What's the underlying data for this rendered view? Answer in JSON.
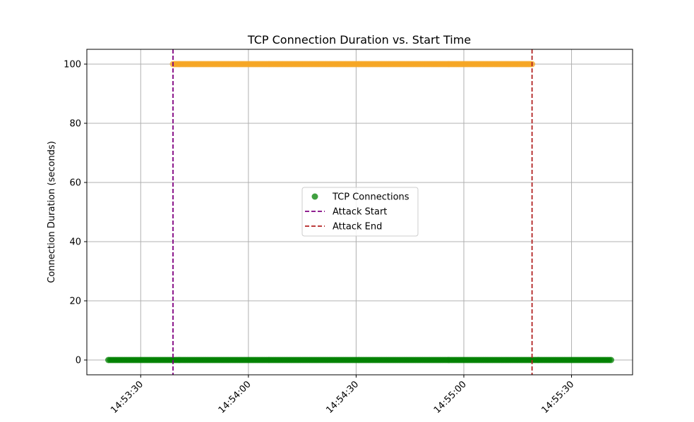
{
  "chart_data": {
    "type": "scatter",
    "title": "TCP Connection Duration vs. Start Time",
    "xlabel": "",
    "ylabel": "Connection Duration (seconds)",
    "xlim": [
      "14:53:15",
      "14:55:47"
    ],
    "ylim": [
      -5,
      105
    ],
    "x_ticks": [
      "14:53:30",
      "14:54:00",
      "14:54:30",
      "14:55:00",
      "14:55:30"
    ],
    "y_ticks": [
      0,
      20,
      40,
      60,
      80,
      100
    ],
    "grid": true,
    "legend_position": "center",
    "series": [
      {
        "name": "TCP Connections",
        "color": "#008000",
        "x_range": [
          "14:53:21",
          "14:55:41"
        ],
        "y": 0,
        "description_style": "dense points"
      },
      {
        "color": "#f5a623",
        "x_range": [
          "14:53:39",
          "14:55:19"
        ],
        "y": 100,
        "description_style": "dense points"
      }
    ],
    "vlines": [
      {
        "name": "Attack Start",
        "x": "14:53:39",
        "color": "#800080",
        "style": "dashed"
      },
      {
        "name": "Attack End",
        "x": "14:55:19",
        "color": "#b22222",
        "style": "dashed"
      }
    ],
    "legend": [
      {
        "label": "TCP Connections",
        "kind": "marker",
        "color": "#008000"
      },
      {
        "label": "Attack Start",
        "kind": "line",
        "color": "#800080"
      },
      {
        "label": "Attack End",
        "kind": "line",
        "color": "#b22222"
      }
    ]
  }
}
